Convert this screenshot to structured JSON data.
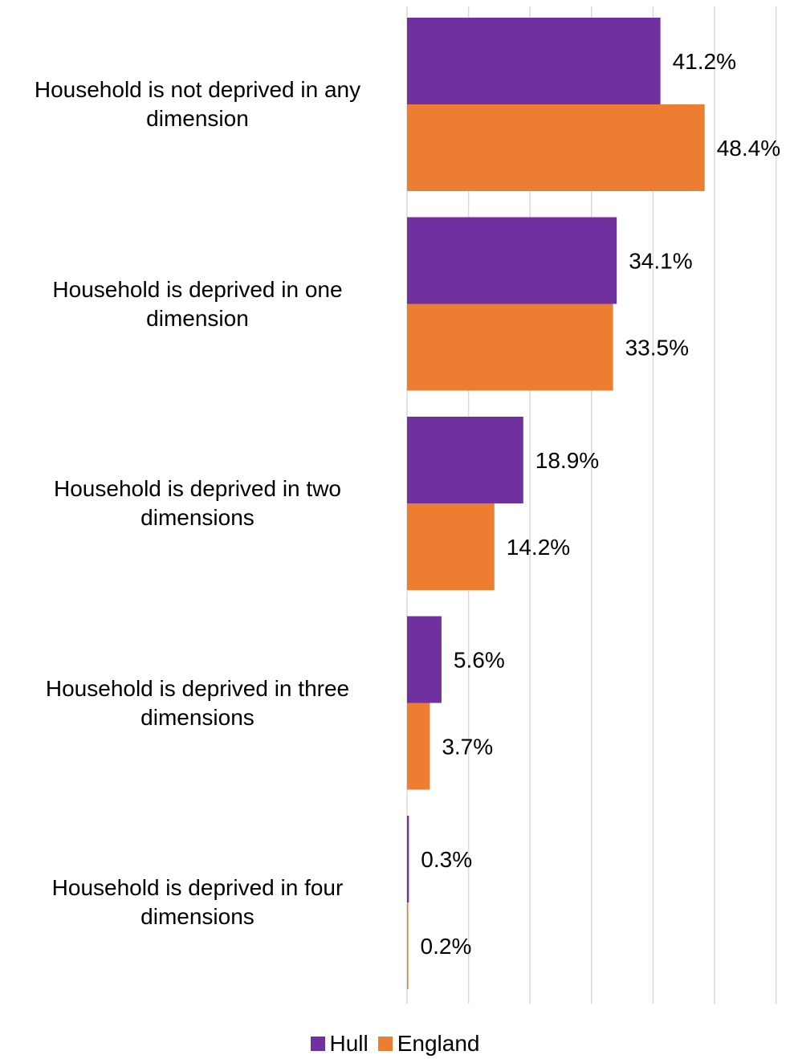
{
  "chart_data": {
    "type": "bar",
    "orientation": "horizontal",
    "categories": [
      "Household is not deprived in any dimension",
      "Household is deprived in one dimension",
      "Household is deprived in two dimensions",
      "Household is deprived in three dimensions",
      "Household is deprived in four dimensions"
    ],
    "category_lines": [
      [
        "Household is not deprived in any",
        "dimension"
      ],
      [
        "Household is deprived in one",
        "dimension"
      ],
      [
        "Household is deprived in two",
        "dimensions"
      ],
      [
        "Household is deprived in three",
        "dimensions"
      ],
      [
        "Household is deprived in four",
        "dimensions"
      ]
    ],
    "series": [
      {
        "name": "Hull",
        "color": "#7030A0",
        "values": [
          41.2,
          34.1,
          18.9,
          5.6,
          0.3
        ],
        "labels": [
          "41.2%",
          "34.1%",
          "18.9%",
          "5.6%",
          "0.3%"
        ]
      },
      {
        "name": "England",
        "color": "#ED7D31",
        "values": [
          48.4,
          33.5,
          14.2,
          3.7,
          0.2
        ],
        "labels": [
          "48.4%",
          "33.5%",
          "14.2%",
          "3.7%",
          "0.2%"
        ]
      }
    ],
    "xlim": [
      0,
      60
    ],
    "gridlines": [
      0,
      10,
      20,
      30,
      40,
      50,
      60
    ],
    "grid": true,
    "tick_labels_shown": false,
    "legend": "bottom",
    "gridline_color": "#D9D9D9"
  }
}
